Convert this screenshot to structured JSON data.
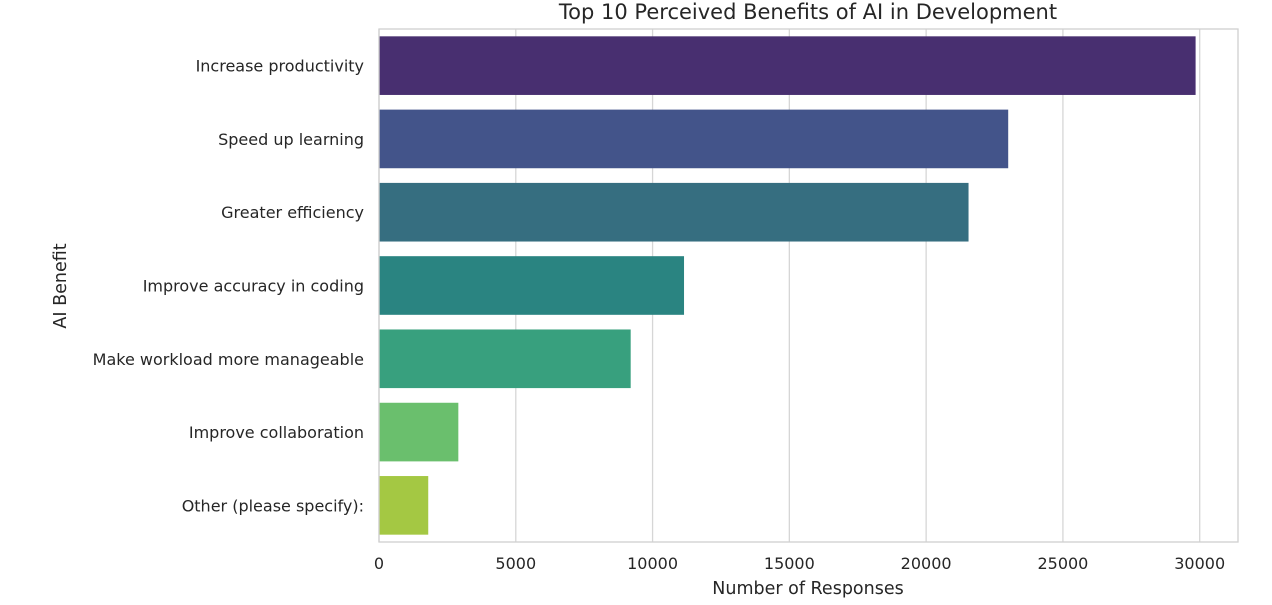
{
  "chart_data": {
    "type": "bar",
    "orientation": "horizontal",
    "title": "Top 10 Perceived Benefits of AI in Development",
    "xlabel": "Number of Responses",
    "ylabel": "AI Benefit",
    "xlim": [
      0,
      31400
    ],
    "xticks": [
      0,
      5000,
      10000,
      15000,
      20000,
      25000,
      30000
    ],
    "xtick_labels": [
      "0",
      "5000",
      "10000",
      "15000",
      "20000",
      "25000",
      "30000"
    ],
    "grid": "x",
    "categories": [
      "Increase productivity",
      "Speed up learning",
      "Greater efficiency",
      "Improve accuracy in coding",
      "Make workload more manageable",
      "Improve collaboration",
      "Other (please specify):"
    ],
    "values": [
      29850,
      23000,
      21550,
      11150,
      9200,
      2900,
      1800
    ],
    "colors": [
      "#482f70",
      "#43548a",
      "#366e80",
      "#2a8481",
      "#38a07e",
      "#6abf6d",
      "#a4c843"
    ]
  }
}
